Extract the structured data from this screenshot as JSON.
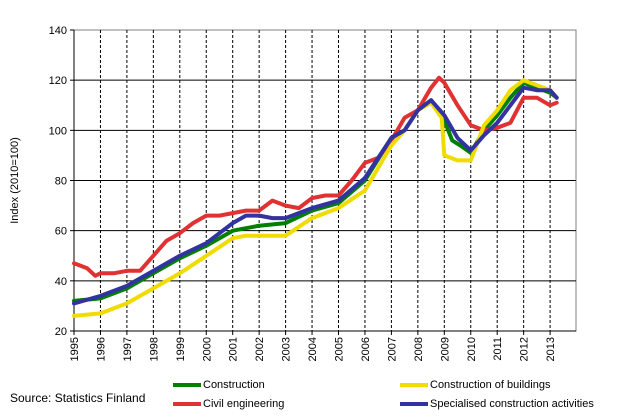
{
  "chart_data": {
    "type": "line",
    "title": "",
    "xlabel": "",
    "ylabel": "Index (2010=100)",
    "ylim": [
      20,
      140
    ],
    "yticks": [
      20,
      40,
      60,
      80,
      100,
      120,
      140
    ],
    "xlim": [
      1995,
      2013.9
    ],
    "xticks": [
      "1995",
      "1996",
      "1997",
      "1998",
      "1999",
      "2000",
      "2001",
      "2002",
      "2003",
      "2004",
      "2005",
      "2006",
      "2007",
      "2008",
      "2009",
      "2010",
      "2011",
      "2012",
      "2013"
    ],
    "grid": {
      "horizontal": "solid",
      "vertical": "dashed"
    },
    "legend_placement": "bottom",
    "source": "Source: Statistics Finland",
    "series": [
      {
        "name": "Construction",
        "color": "#008000",
        "x": [
          1995,
          1996,
          1997,
          1998,
          1999,
          2000,
          2001,
          2002,
          2003,
          2004,
          2005,
          2006,
          2007,
          2007.5,
          2008,
          2008.5,
          2009,
          2009.3,
          2009.6,
          2010,
          2010.5,
          2011,
          2011.5,
          2012,
          2012.5,
          2013,
          2013.25
        ],
        "y": [
          32,
          33,
          37,
          43,
          49,
          54,
          60,
          62,
          63,
          68,
          71,
          80,
          97,
          100,
          108,
          112,
          104,
          96,
          94,
          91,
          100,
          106,
          113,
          119,
          117,
          115,
          113
        ]
      },
      {
        "name": "Civil engineering",
        "color": "#e03232",
        "x": [
          1995,
          1995.5,
          1995.8,
          1996,
          1996.5,
          1997,
          1997.5,
          1998,
          1998.5,
          1999,
          1999.5,
          2000,
          2000.5,
          2001,
          2001.5,
          2002,
          2002.5,
          2003,
          2003.5,
          2004,
          2004.5,
          2005,
          2005.5,
          2006,
          2006.5,
          2007,
          2007.5,
          2008,
          2008.5,
          2008.8,
          2009,
          2009.5,
          2010,
          2010.5,
          2011,
          2011.5,
          2012,
          2012.5,
          2013,
          2013.25
        ],
        "y": [
          47,
          45,
          42,
          43,
          43,
          44,
          44,
          50,
          56,
          59,
          63,
          66,
          66,
          67,
          68,
          68,
          72,
          70,
          69,
          73,
          74,
          74,
          80,
          87,
          89,
          96,
          105,
          108,
          117,
          121,
          119,
          110,
          102,
          100,
          101,
          103,
          113,
          113,
          110,
          111
        ]
      },
      {
        "name": "Construction of buildings",
        "color": "#f0dc00",
        "x": [
          1995,
          1996,
          1997,
          1998,
          1999,
          2000,
          2001,
          2001.5,
          2002,
          2003,
          2004,
          2005,
          2006,
          2007,
          2007.5,
          2008,
          2008.5,
          2008.9,
          2009,
          2009.5,
          2010,
          2010.5,
          2011,
          2011.5,
          2012,
          2012.5,
          2013,
          2013.25
        ],
        "y": [
          26,
          27,
          31,
          37,
          43,
          50,
          57,
          58,
          58,
          58,
          65,
          69,
          76,
          94,
          100,
          108,
          111,
          105,
          90,
          88,
          88,
          102,
          108,
          116,
          120,
          118,
          116,
          113
        ]
      },
      {
        "name": "Specialised construction activities",
        "color": "#3232a0",
        "x": [
          1995,
          1996,
          1997,
          1998,
          1999,
          2000,
          2001,
          2001.5,
          2002,
          2002.5,
          2003,
          2004,
          2005,
          2006,
          2007,
          2007.5,
          2008,
          2008.5,
          2009,
          2009.5,
          2010,
          2010.5,
          2011,
          2011.5,
          2012,
          2012.5,
          2013,
          2013.25
        ],
        "y": [
          31,
          34,
          38,
          44,
          50,
          55,
          63,
          66,
          66,
          65,
          65,
          69,
          72,
          81,
          97,
          100,
          108,
          112,
          106,
          97,
          92,
          98,
          103,
          110,
          117,
          116,
          116,
          113
        ]
      }
    ]
  }
}
